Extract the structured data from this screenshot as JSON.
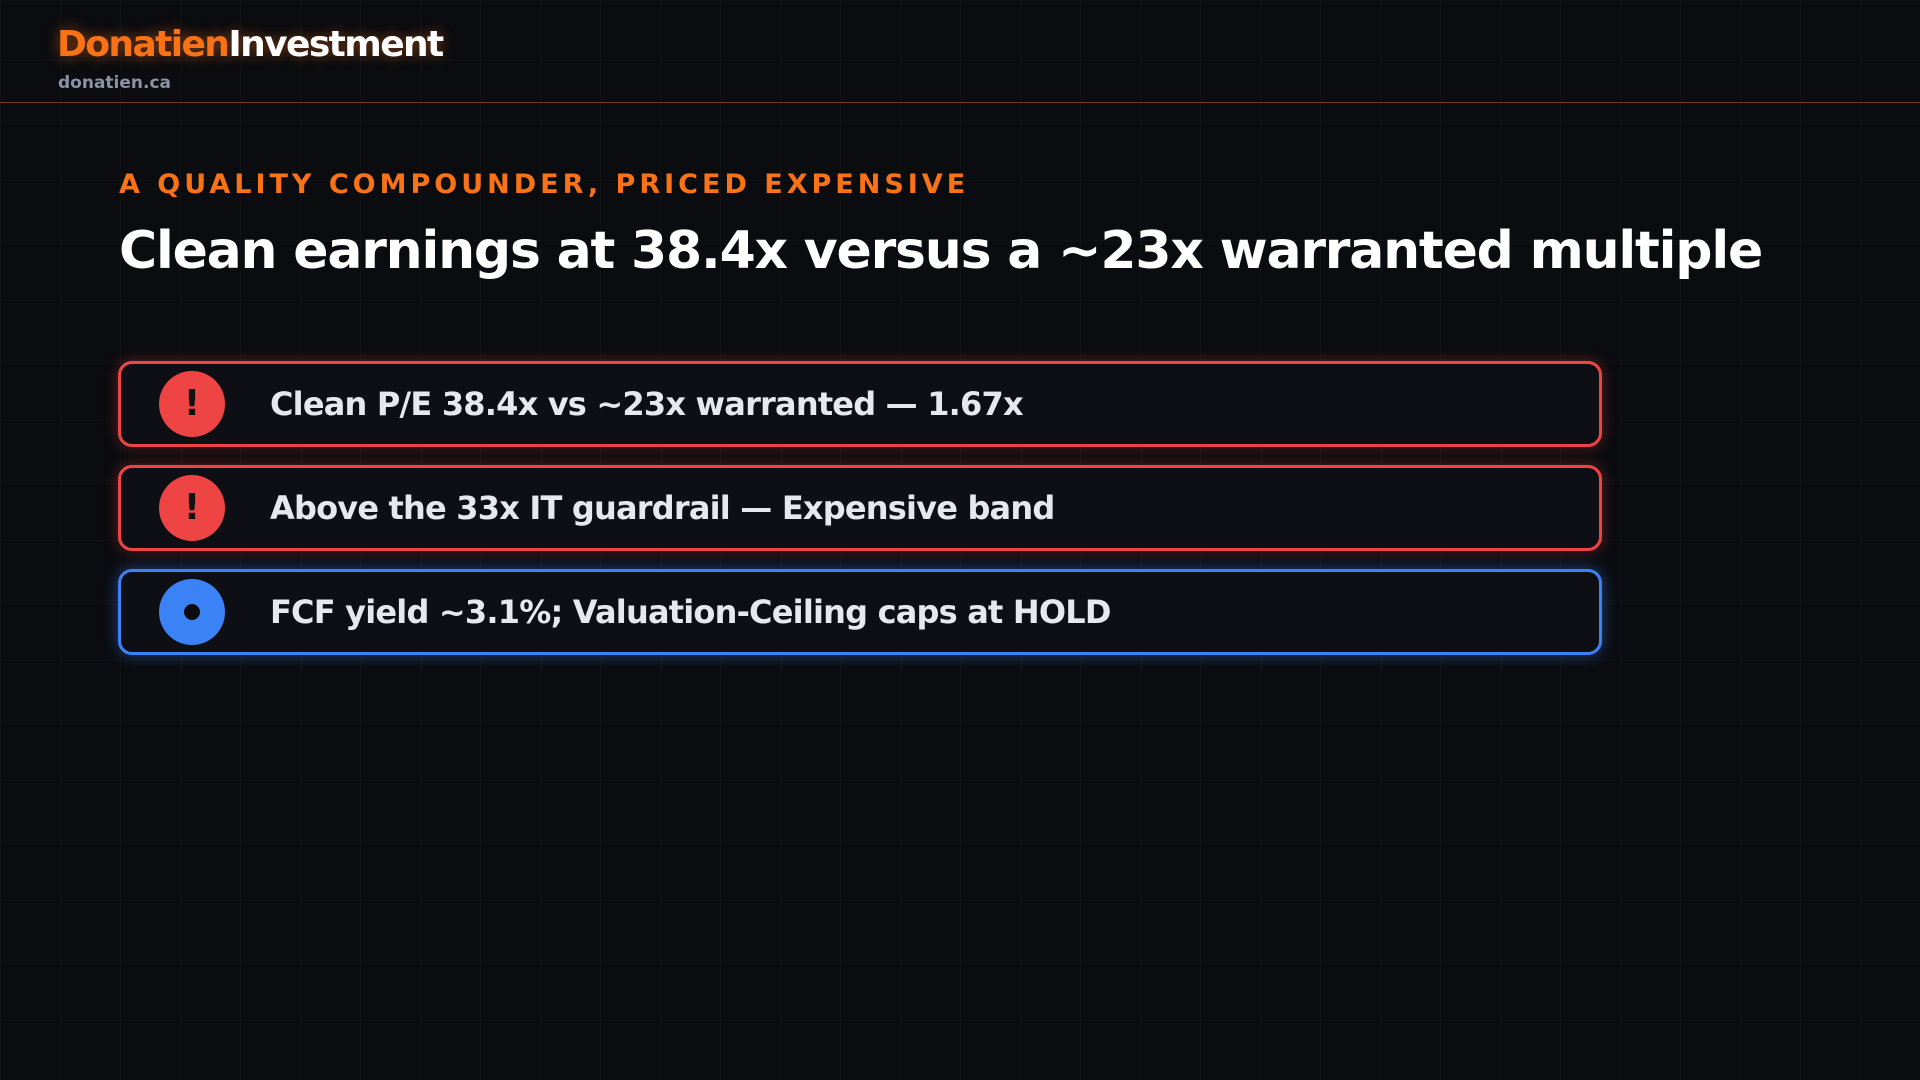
{
  "header": {
    "brand_primary": "Donatien",
    "brand_secondary": "Investment",
    "domain": "donatien.ca"
  },
  "slide": {
    "eyebrow": "A QUALITY COMPOUNDER, PRICED EXPENSIVE",
    "title": "Clean earnings at 38.4x versus a ~23x warranted multiple"
  },
  "colors": {
    "accent": "#f97316",
    "alert": "#ef4444",
    "info": "#3b82f6",
    "background": "#0b0c10"
  },
  "cards": [
    {
      "type": "alert",
      "icon": "exclamation-icon",
      "icon_glyph": "!",
      "text": "Clean P/E 38.4x vs ~23x warranted — 1.67x"
    },
    {
      "type": "alert",
      "icon": "exclamation-icon",
      "icon_glyph": "!",
      "text": "Above the 33x IT guardrail — Expensive band"
    },
    {
      "type": "info",
      "icon": "dot-icon",
      "icon_glyph": "",
      "text": "FCF yield ~3.1%; Valuation-Ceiling caps at HOLD"
    }
  ]
}
